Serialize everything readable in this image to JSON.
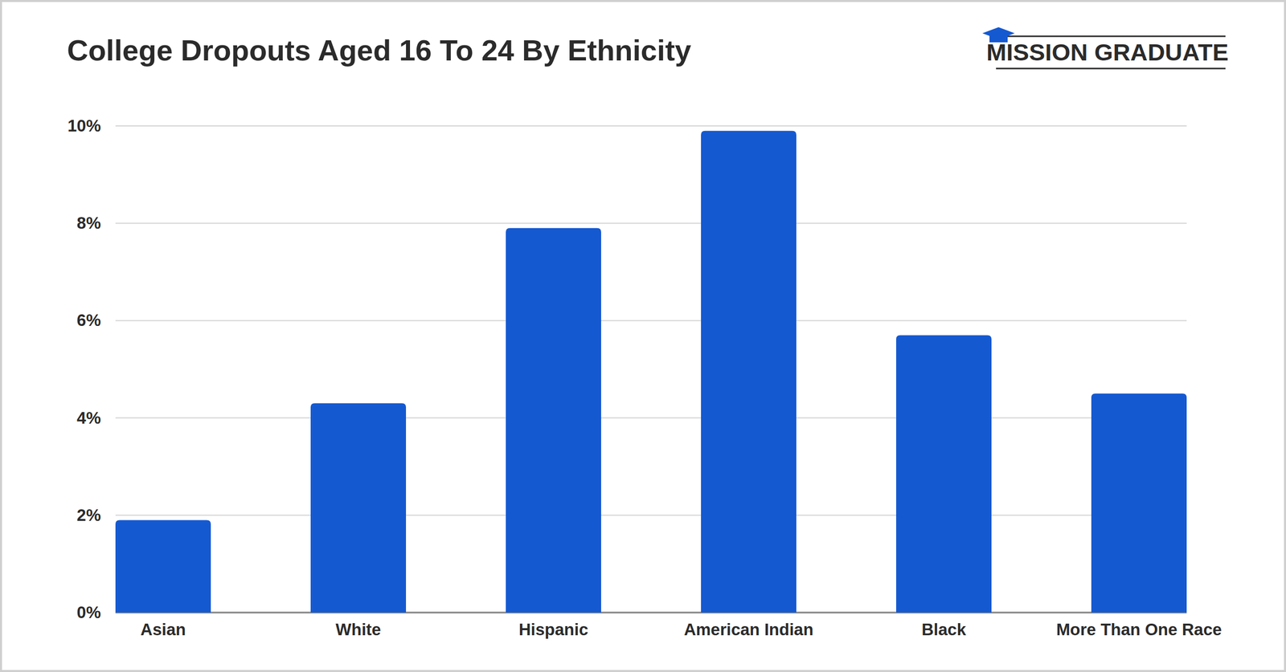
{
  "chart_data": {
    "type": "bar",
    "title": "College Dropouts Aged 16 To 24 By Ethnicity",
    "annotations": [
      "MISSION GRADUATE"
    ],
    "categories": [
      "Asian",
      "White",
      "Hispanic",
      "American Indian",
      "Black",
      "More Than One Race"
    ],
    "values": [
      1.9,
      4.3,
      7.9,
      9.9,
      5.7,
      4.5
    ],
    "color": "#1559d1",
    "ylim": [
      0,
      10
    ],
    "yticks": [
      {
        "value": 0,
        "label": "0%"
      },
      {
        "value": 2,
        "label": "2%"
      },
      {
        "value": 4,
        "label": "4%"
      },
      {
        "value": 6,
        "label": "6%"
      },
      {
        "value": 8,
        "label": "8%"
      },
      {
        "value": 10,
        "label": "10%"
      }
    ],
    "grid": true
  }
}
